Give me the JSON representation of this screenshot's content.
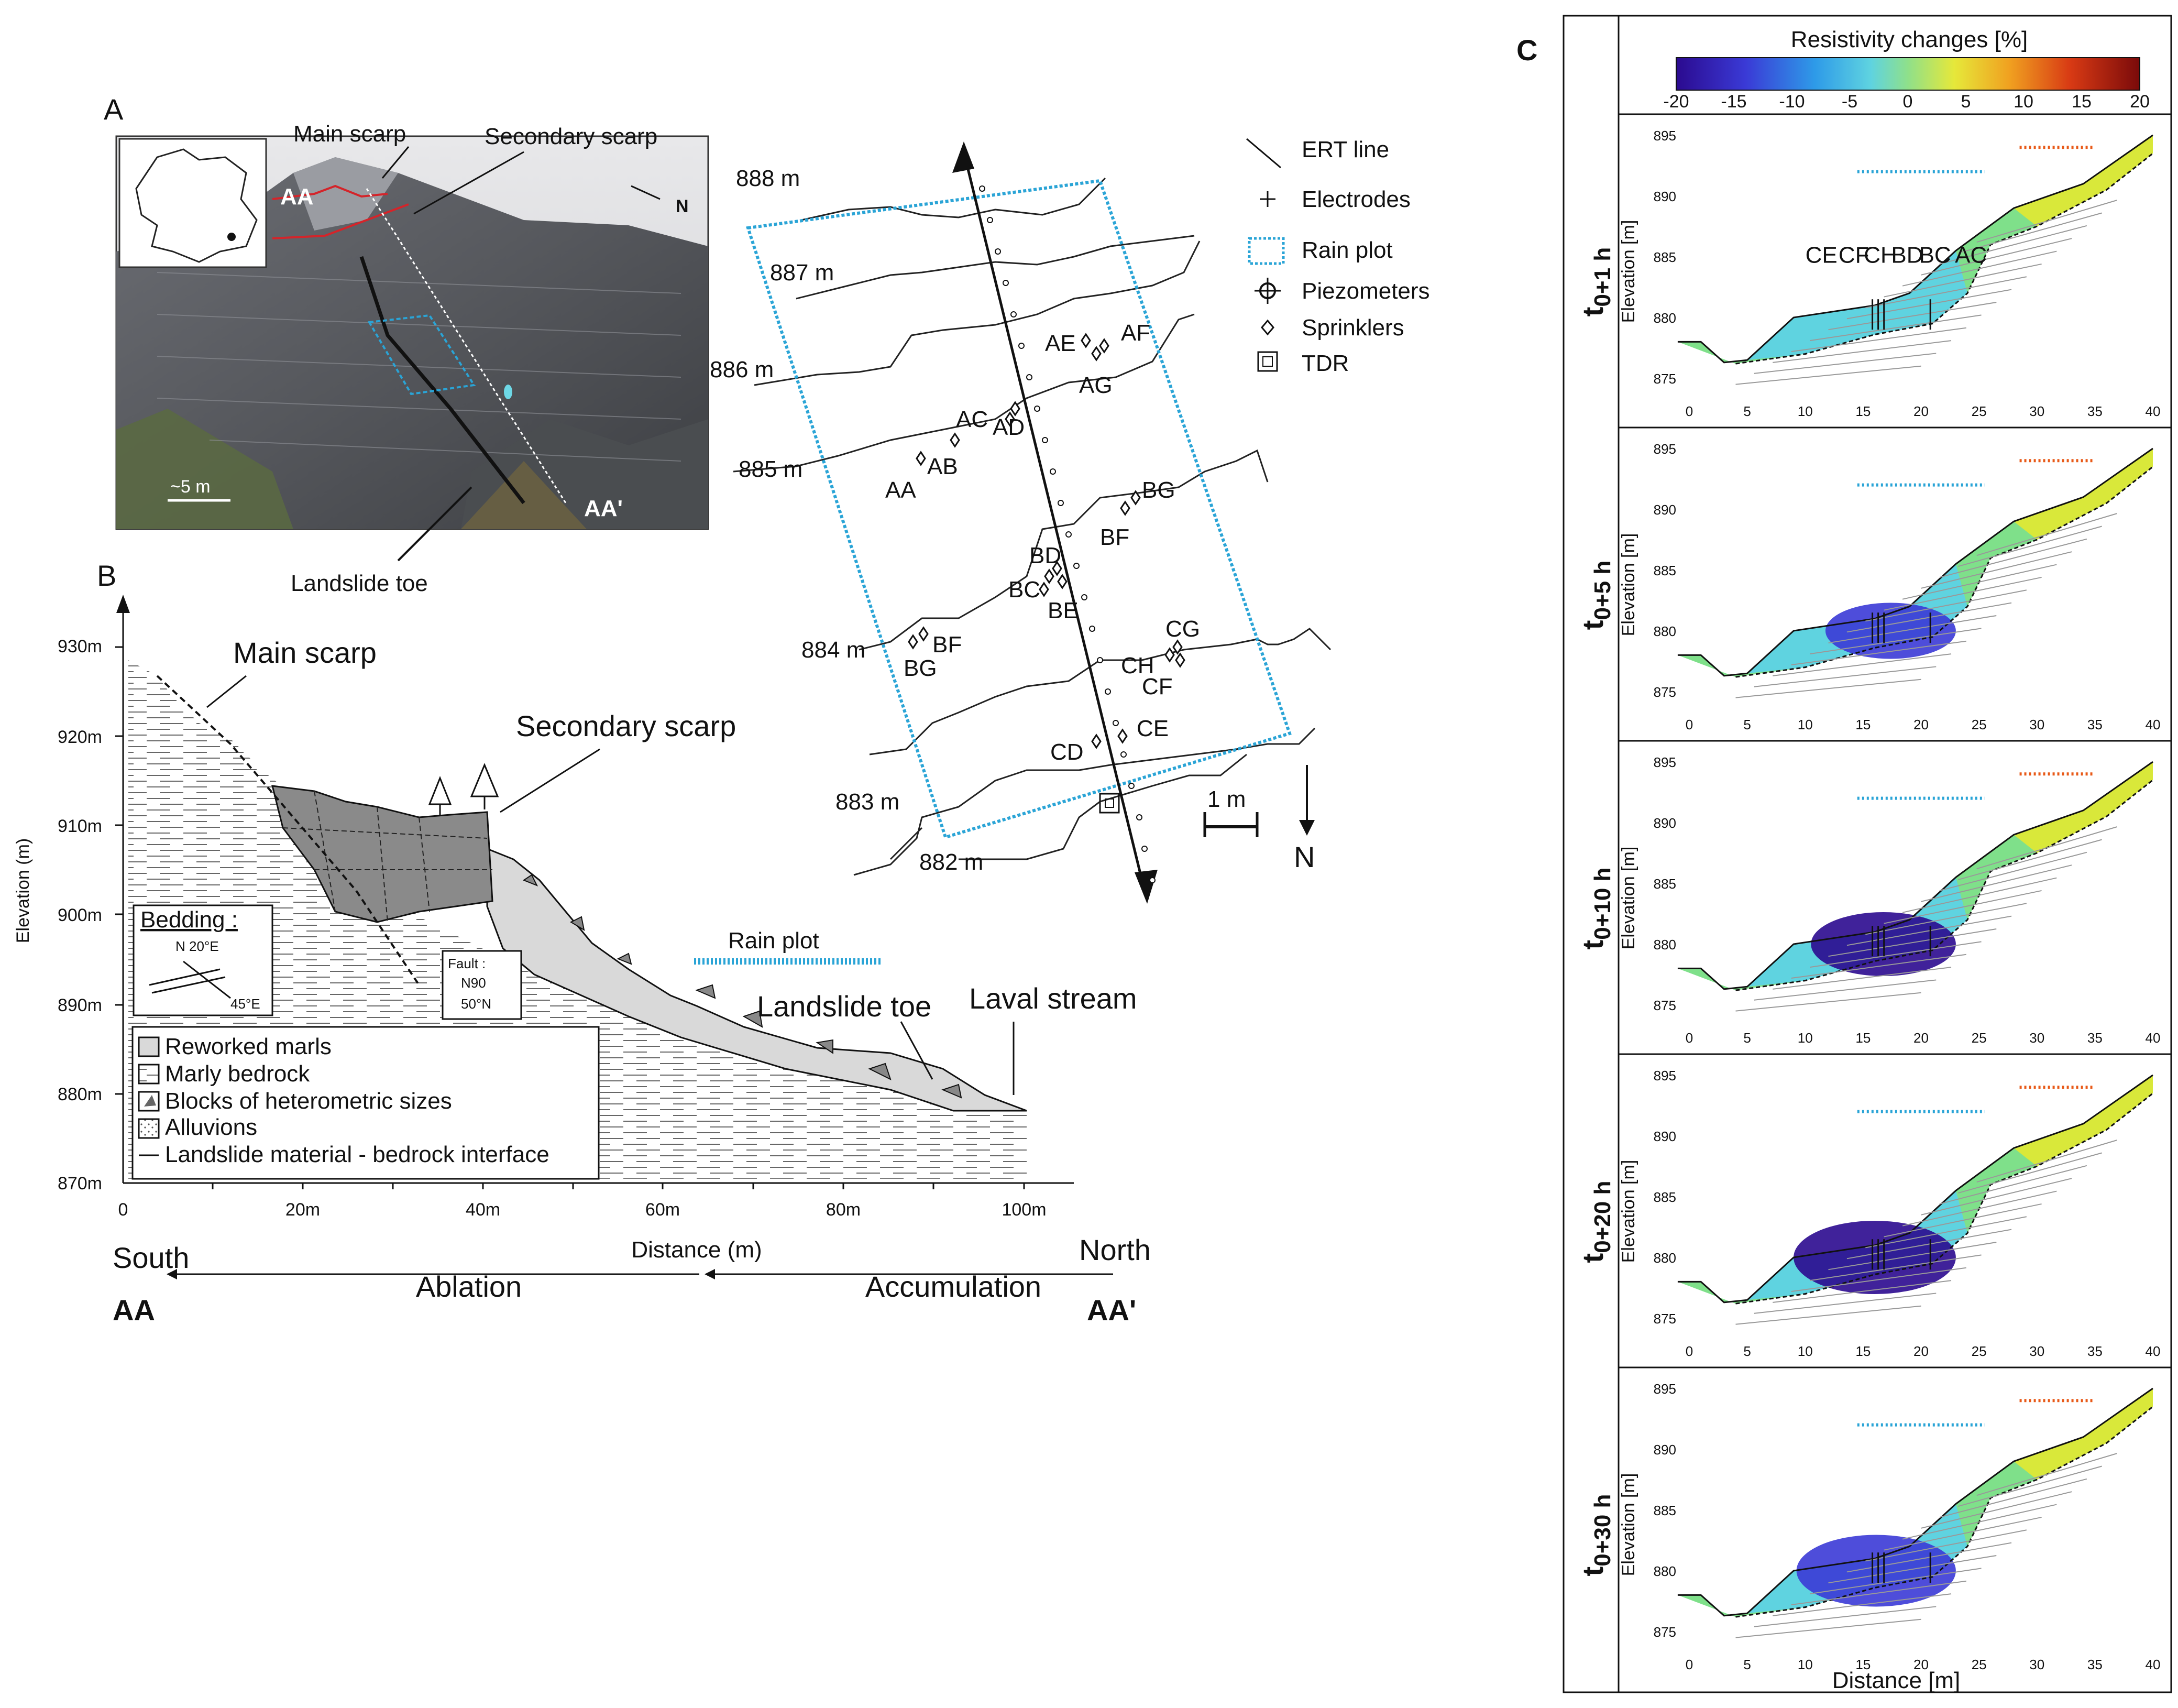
{
  "panelA": {
    "letter": "A",
    "photo": {
      "main_scarp": "Main scarp",
      "secondary_scarp": "Secondary scarp",
      "landslide_toe": "Landslide toe",
      "aa": "AA",
      "aa_prime": "AA'",
      "north": "N",
      "scale": "~5 m"
    },
    "plan": {
      "contours": [
        "888 m",
        "887 m",
        "886 m",
        "885 m",
        "884 m",
        "883 m",
        "882 m"
      ],
      "sprinklers": [
        "AA",
        "AB",
        "AC",
        "AD",
        "AE",
        "AF",
        "AG",
        "BG",
        "BF",
        "BD",
        "BC",
        "BE",
        "BF",
        "BG",
        "CH",
        "CG",
        "CF",
        "CD",
        "CE"
      ],
      "scale": "1 m",
      "north": "N",
      "legend": [
        "ERT line",
        "Electrodes",
        "Rain plot",
        "Piezometers",
        "Sprinklers",
        "TDR"
      ]
    }
  },
  "panelB": {
    "letter": "B",
    "y_axis_label": "Elevation (m)",
    "y_ticks": [
      "930m",
      "920m",
      "910m",
      "900m",
      "890m",
      "880m",
      "870m"
    ],
    "x_ticks": [
      "0",
      "20m",
      "40m",
      "60m",
      "80m",
      "100m"
    ],
    "x_axis_label": "Distance (m)",
    "main_scarp": "Main scarp",
    "secondary_scarp": "Secondary scarp",
    "rain_plot": "Rain plot",
    "landslide_toe": "Landslide toe",
    "laval_stream": "Laval stream",
    "bedding_title": "Bedding :",
    "bedding_strike": "N 20°E",
    "bedding_dip": "45°E",
    "fault_title": "Fault :",
    "fault_1": "N90",
    "fault_2": "50°N",
    "legend": [
      "Reworked marls",
      "Marly bedrock",
      "Blocks of heterometric sizes",
      "Alluvions",
      "Landslide material - bedrock interface"
    ],
    "south": "South",
    "north": "North",
    "ablation": "Ablation",
    "accumulation": "Accumulation",
    "aa": "AA",
    "aa_prime": "AA'"
  },
  "panelC": {
    "letter": "C",
    "colorbar_title": "Resistivity changes [%]",
    "colorbar_ticks": [
      "-20",
      "-15",
      "-10",
      "-5",
      "0",
      "5",
      "10",
      "15",
      "20"
    ],
    "y_label": "Elevation [m]",
    "x_label": "Distance [m]",
    "y_ticks": [
      "895",
      "890",
      "885",
      "880",
      "875"
    ],
    "x_ticks": [
      "0",
      "5",
      "10",
      "15",
      "20",
      "25",
      "30",
      "35",
      "40"
    ],
    "borehole_labels": [
      "CE",
      "CF",
      "CH",
      "BD",
      "BC",
      "AC"
    ],
    "times": [
      "0+1 h",
      "0+5 h",
      "0+10 h",
      "0+20 h",
      "0+30 h"
    ],
    "time_symbol": "t"
  }
}
